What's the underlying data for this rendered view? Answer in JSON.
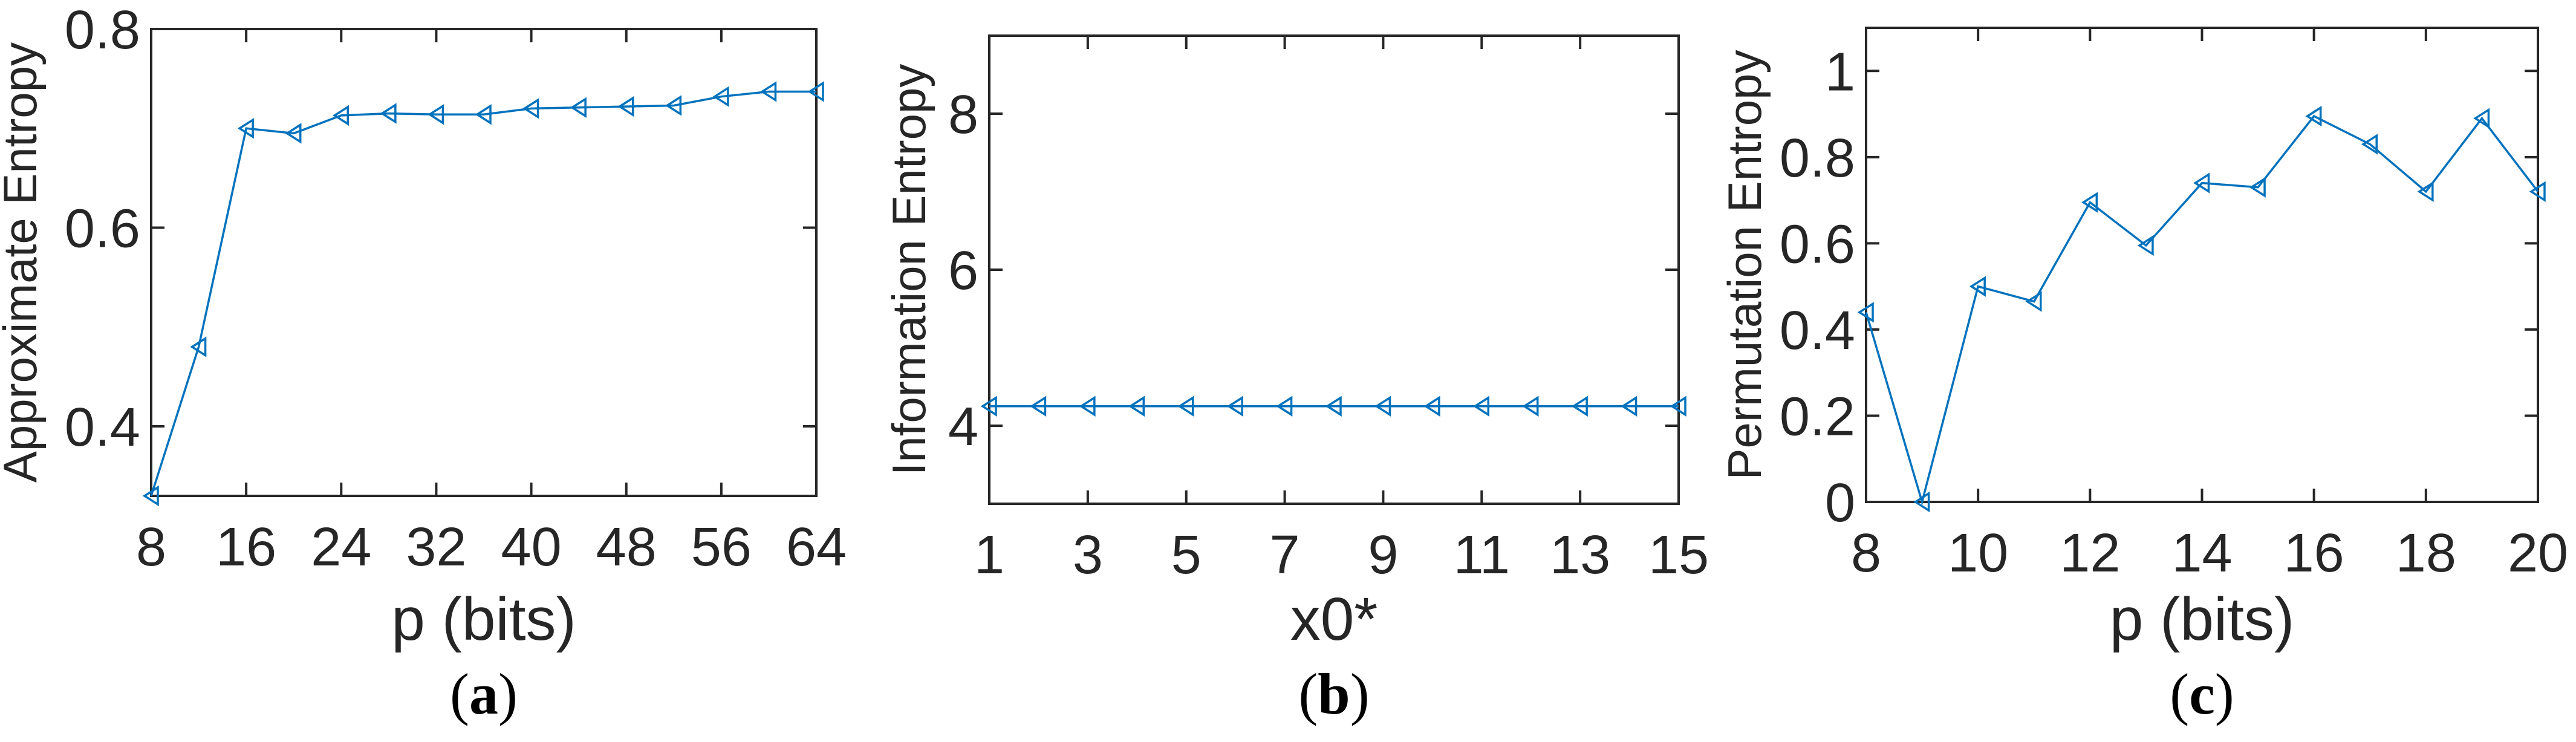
{
  "figure": {
    "panels": [
      {
        "id": "a",
        "caption_letter": "a",
        "ylabel": "Approximate Entropy",
        "xlabel": "p (bits)"
      },
      {
        "id": "b",
        "caption_letter": "b",
        "ylabel": "Information Entropy",
        "xlabel": "x0*"
      },
      {
        "id": "c",
        "caption_letter": "c",
        "ylabel": "Permutation Entropy",
        "xlabel": "p (bits)"
      }
    ],
    "colors": {
      "series": "#0072BD",
      "axes": "#262626",
      "background": "#ffffff"
    }
  },
  "chart_data": [
    {
      "type": "line",
      "panel": "(a)",
      "title": "",
      "xlabel": "p (bits)",
      "ylabel": "Approximate Entropy",
      "x": [
        8,
        12,
        16,
        20,
        24,
        28,
        32,
        36,
        40,
        44,
        48,
        52,
        56,
        60,
        64
      ],
      "series": [
        {
          "name": "Approximate Entropy",
          "marker": "left-triangle",
          "color": "#0072BD",
          "values": [
            0.33,
            0.48,
            0.7,
            0.695,
            0.713,
            0.715,
            0.714,
            0.714,
            0.72,
            0.721,
            0.722,
            0.723,
            0.732,
            0.737,
            0.737
          ]
        }
      ],
      "xlim": [
        8,
        64
      ],
      "ylim": [
        0.33,
        0.8
      ],
      "xticks": [
        8,
        16,
        24,
        32,
        40,
        48,
        56,
        64
      ],
      "yticks": [
        0.4,
        0.6,
        0.8
      ],
      "ytick_labels": [
        "0.4",
        "0.6",
        "0.8"
      ],
      "grid": false,
      "legend": null
    },
    {
      "type": "line",
      "panel": "(b)",
      "title": "",
      "xlabel": "x0*",
      "ylabel": "Information Entropy",
      "x": [
        1,
        2,
        3,
        4,
        5,
        6,
        7,
        8,
        9,
        10,
        11,
        12,
        13,
        14,
        15
      ],
      "series": [
        {
          "name": "Information Entropy",
          "marker": "left-triangle",
          "color": "#0072BD",
          "values": [
            4.25,
            4.25,
            4.25,
            4.25,
            4.25,
            4.25,
            4.25,
            4.25,
            4.25,
            4.25,
            4.25,
            4.25,
            4.25,
            4.25,
            4.25
          ]
        }
      ],
      "xlim": [
        1,
        15
      ],
      "ylim": [
        3,
        9
      ],
      "xticks": [
        1,
        3,
        5,
        7,
        9,
        11,
        13,
        15
      ],
      "yticks": [
        4,
        6,
        8
      ],
      "ytick_labels": [
        "4",
        "6",
        "8"
      ],
      "grid": false,
      "legend": null
    },
    {
      "type": "line",
      "panel": "(c)",
      "title": "",
      "xlabel": "p (bits)",
      "ylabel": "Permutation Entropy",
      "x": [
        8,
        9,
        10,
        11,
        12,
        13,
        14,
        15,
        16,
        17,
        18,
        19,
        20
      ],
      "series": [
        {
          "name": "Permutation Entropy",
          "marker": "left-triangle",
          "color": "#0072BD",
          "values": [
            0.44,
            0.0,
            0.5,
            0.465,
            0.695,
            0.595,
            0.74,
            0.73,
            0.895,
            0.83,
            0.72,
            0.89,
            0.72
          ]
        }
      ],
      "xlim": [
        8,
        20
      ],
      "ylim": [
        0,
        1.1
      ],
      "xticks": [
        8,
        10,
        12,
        14,
        16,
        18,
        20
      ],
      "yticks": [
        0,
        0.2,
        0.4,
        0.6,
        0.8,
        1
      ],
      "ytick_labels": [
        "0",
        "0.2",
        "0.4",
        "0.6",
        "0.8",
        "1"
      ],
      "grid": false,
      "legend": null
    }
  ]
}
